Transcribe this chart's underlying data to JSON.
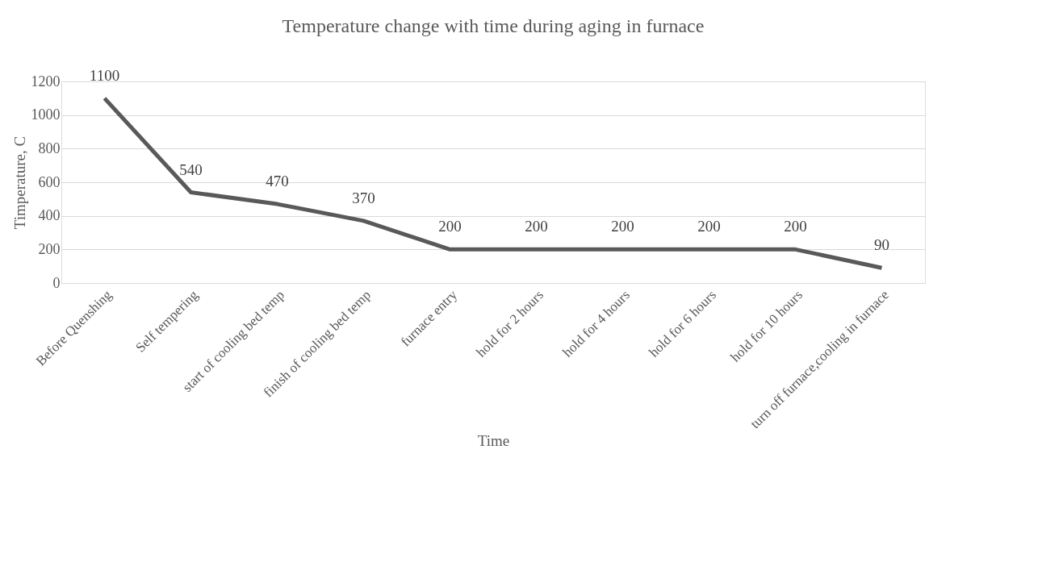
{
  "chart_data": {
    "type": "line",
    "title": "Temperature change with time during aging in furnace",
    "xlabel": "Time",
    "ylabel": "Timperature, C",
    "categories": [
      "Before Quenshing",
      "Self tempering",
      "start of cooling bed temp",
      "finish of cooling bed temp",
      "furnace entry",
      "hold for 2 hours",
      "hold for 4 hours",
      "hold for 6 hours",
      "hold for 10 hours",
      "turn off furnace,cooling in furnace"
    ],
    "series": [
      {
        "color": "#595959",
        "values": [
          1100,
          540,
          470,
          370,
          200,
          200,
          200,
          200,
          200,
          90
        ]
      }
    ],
    "ylim": [
      0,
      1200
    ],
    "yticks": [
      0,
      200,
      400,
      600,
      800,
      1000,
      1200
    ],
    "grid": "y",
    "data_labels": true,
    "marker": "none",
    "line_style": "solid"
  }
}
